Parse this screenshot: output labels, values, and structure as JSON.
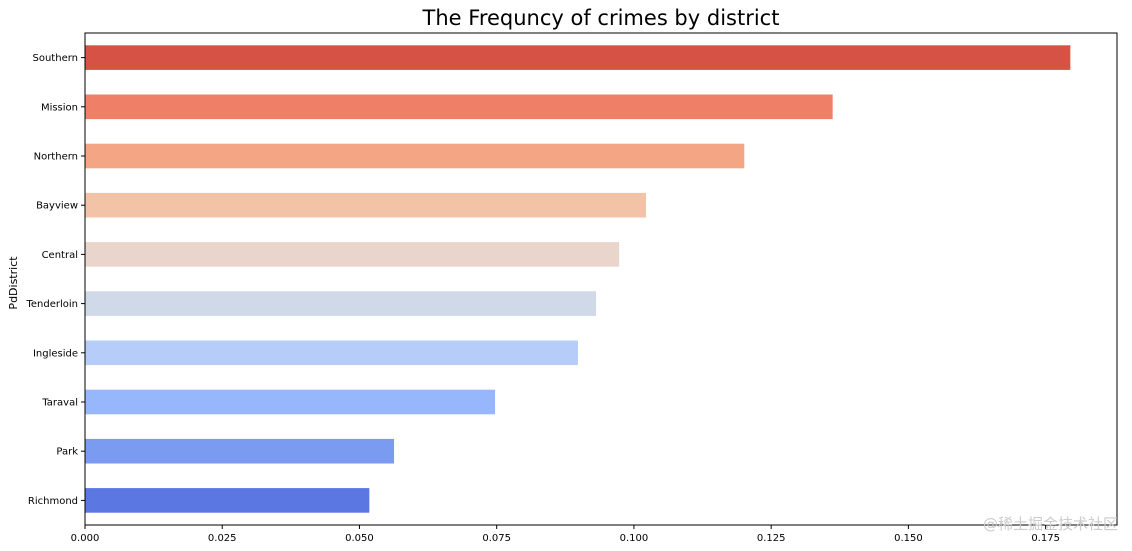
{
  "chart_data": {
    "type": "bar",
    "orientation": "horizontal",
    "title": "The Frequncy of crimes by district",
    "xlabel": "",
    "ylabel": "PdDistrict",
    "xlim": [
      0,
      0.188
    ],
    "xticks": [
      "0.000",
      "0.025",
      "0.050",
      "0.075",
      "0.100",
      "0.125",
      "0.150",
      "0.175"
    ],
    "xtick_values": [
      0,
      0.025,
      0.05,
      0.075,
      0.1,
      0.125,
      0.15,
      0.175
    ],
    "grid": false,
    "legend": "none",
    "categories": [
      "Southern",
      "Mission",
      "Northern",
      "Bayview",
      "Central",
      "Tenderloin",
      "Ingleside",
      "Taraval",
      "Park",
      "Richmond"
    ],
    "values": [
      0.1795,
      0.1362,
      0.1201,
      0.1022,
      0.0973,
      0.0931,
      0.0898,
      0.0747,
      0.0563,
      0.0518
    ],
    "colors": [
      "#d65244",
      "#ef7f67",
      "#f4a584",
      "#f3c3a8",
      "#e9d5cb",
      "#d0d9e8",
      "#b5cdf8",
      "#97b7fc",
      "#7a9bf0",
      "#5a77e2"
    ]
  },
  "watermark": "@稀土掘金技术社区"
}
